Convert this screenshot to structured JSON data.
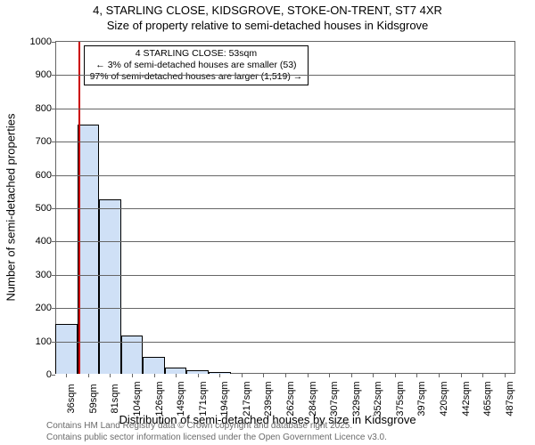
{
  "title": {
    "line1": "4, STARLING CLOSE, KIDSGROVE, STOKE-ON-TRENT, ST7 4XR",
    "line2": "Size of property relative to semi-detached houses in Kidsgrove"
  },
  "chart": {
    "type": "histogram",
    "ylim": [
      0,
      1000
    ],
    "ytick_step": 100,
    "ylabel": "Number of semi-detached properties",
    "xlabel": "Distribution of semi-detached houses by size in Kidsgrove",
    "label_fontsize": 13,
    "tick_fontsize": 11,
    "bar_fill": "#cfe0f6",
    "bar_stroke": "#000000",
    "grid_color": "#666666",
    "background_color": "#ffffff",
    "ref_line": {
      "color": "#cc0000",
      "width": 2,
      "x_index": 1
    },
    "x_ticks": [
      "36sqm",
      "59sqm",
      "81sqm",
      "104sqm",
      "126sqm",
      "149sqm",
      "171sqm",
      "194sqm",
      "217sqm",
      "239sqm",
      "262sqm",
      "284sqm",
      "307sqm",
      "329sqm",
      "352sqm",
      "375sqm",
      "397sqm",
      "420sqm",
      "442sqm",
      "465sqm",
      "487sqm"
    ],
    "bars": [
      150,
      750,
      525,
      115,
      50,
      20,
      10,
      5,
      0,
      0,
      0,
      0,
      0,
      0,
      0,
      0,
      0,
      0,
      0,
      0,
      0
    ],
    "bar_width_ratio": 1.0
  },
  "annotation": {
    "line1": "4 STARLING CLOSE: 53sqm",
    "line2": "← 3% of semi-detached houses are smaller (53)",
    "line3": "97% of semi-detached houses are larger (1,519) →",
    "border_color": "#000000",
    "background": "#ffffff"
  },
  "footer": {
    "line1": "Contains HM Land Registry data © Crown copyright and database right 2025.",
    "line2": "Contains public sector information licensed under the Open Government Licence v3.0.",
    "color": "#6b6b6b"
  }
}
